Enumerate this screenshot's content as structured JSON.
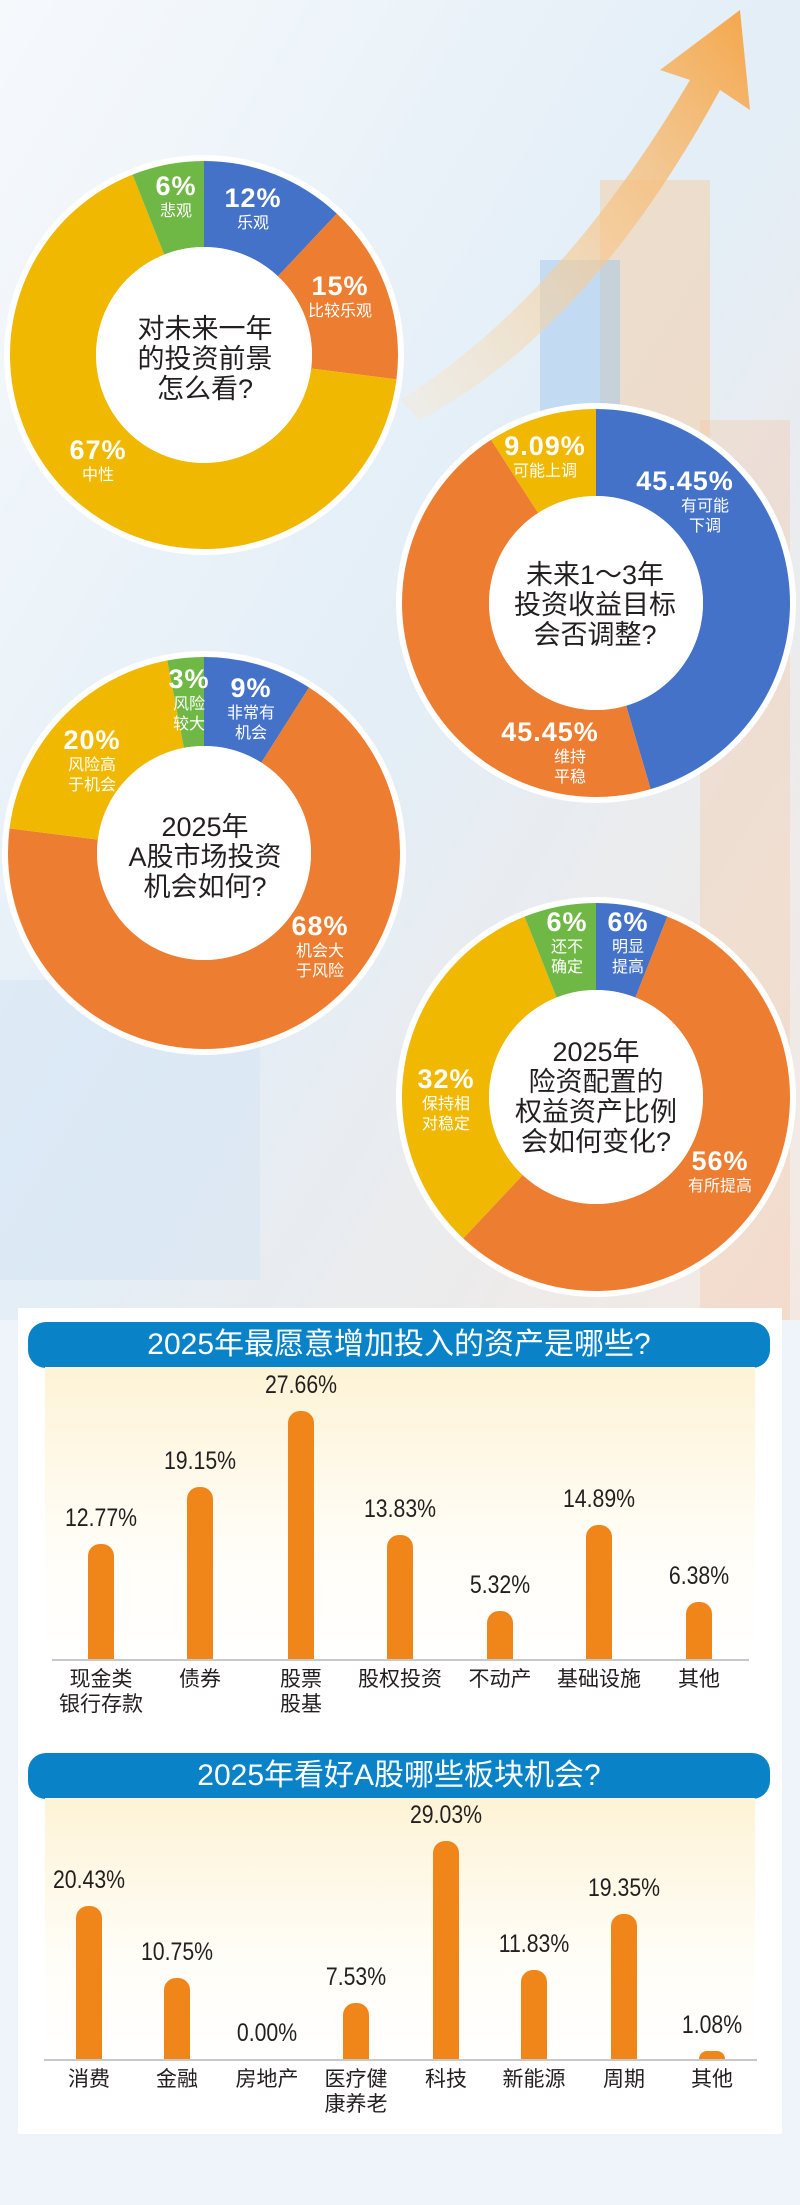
{
  "colors": {
    "blue": "#4472c8",
    "orange": "#ed7d31",
    "yellow": "#f0b800",
    "green": "#70b845",
    "bar": "#f08519",
    "header": "#0a82c8"
  },
  "chart_data": [
    {
      "type": "pie",
      "title_lines": [
        "对未来一年",
        "的投资前景",
        "怎么看?"
      ],
      "segments": [
        {
          "label": "乐观",
          "value": 12,
          "value_text": "12%",
          "color": "#4472c8"
        },
        {
          "label": "比较乐观",
          "value": 15,
          "value_text": "15%",
          "color": "#ed7d31"
        },
        {
          "label": "中性",
          "value": 67,
          "value_text": "67%",
          "color": "#f0b800"
        },
        {
          "label": "悲观",
          "value": 6,
          "value_text": "6%",
          "color": "#70b845"
        }
      ]
    },
    {
      "type": "pie",
      "title_lines": [
        "未来1～3年",
        "投资收益目标",
        "会否调整?"
      ],
      "segments": [
        {
          "label": "有可能\n下调",
          "value": 45.45,
          "value_text": "45.45%",
          "color": "#4472c8"
        },
        {
          "label": "维持\n平稳",
          "value": 45.45,
          "value_text": "45.45%",
          "color": "#ed7d31"
        },
        {
          "label": "可能上调",
          "value": 9.09,
          "value_text": "9.09%",
          "color": "#f0b800"
        }
      ]
    },
    {
      "type": "pie",
      "title_lines": [
        "2025年",
        "A股市场投资",
        "机会如何?"
      ],
      "segments": [
        {
          "label": "非常有\n机会",
          "value": 9,
          "value_text": "9%",
          "color": "#4472c8"
        },
        {
          "label": "机会大\n于风险",
          "value": 68,
          "value_text": "68%",
          "color": "#ed7d31"
        },
        {
          "label": "风险高\n于机会",
          "value": 20,
          "value_text": "20%",
          "color": "#f0b800"
        },
        {
          "label": "风险\n较大",
          "value": 3,
          "value_text": "3%",
          "color": "#70b845"
        }
      ]
    },
    {
      "type": "pie",
      "title_lines": [
        "2025年",
        "险资配置的",
        "权益资产比例",
        "会如何变化?"
      ],
      "segments": [
        {
          "label": "明显\n提高",
          "value": 6,
          "value_text": "6%",
          "color": "#4472c8"
        },
        {
          "label": "有所提高",
          "value": 56,
          "value_text": "56%",
          "color": "#ed7d31"
        },
        {
          "label": "保持相\n对稳定",
          "value": 32,
          "value_text": "32%",
          "color": "#f0b800"
        },
        {
          "label": "还不\n确定",
          "value": 6,
          "value_text": "6%",
          "color": "#70b845"
        }
      ]
    },
    {
      "type": "bar",
      "title": "2025年最愿意增加投入的资产是哪些?",
      "categories": [
        "现金类\n银行存款",
        "债券",
        "股票\n股基",
        "股权投资",
        "不动产",
        "基础设施",
        "其他"
      ],
      "values": [
        12.77,
        19.15,
        27.66,
        13.83,
        5.32,
        14.89,
        6.38
      ],
      "value_labels": [
        "12.77%",
        "19.15%",
        "27.66%",
        "13.83%",
        "5.32%",
        "14.89%",
        "6.38%"
      ],
      "ylim": [
        0,
        30
      ]
    },
    {
      "type": "bar",
      "title": "2025年看好A股哪些板块机会?",
      "categories": [
        "消费",
        "金融",
        "房地产",
        "医疗健\n康养老",
        "科技",
        "新能源",
        "周期",
        "其他"
      ],
      "values": [
        20.43,
        10.75,
        0.0,
        7.53,
        29.03,
        11.83,
        19.35,
        1.08
      ],
      "value_labels": [
        "20.43%",
        "10.75%",
        "0.00%",
        "7.53%",
        "29.03%",
        "11.83%",
        "19.35%",
        "1.08%"
      ],
      "ylim": [
        0,
        30
      ]
    }
  ]
}
